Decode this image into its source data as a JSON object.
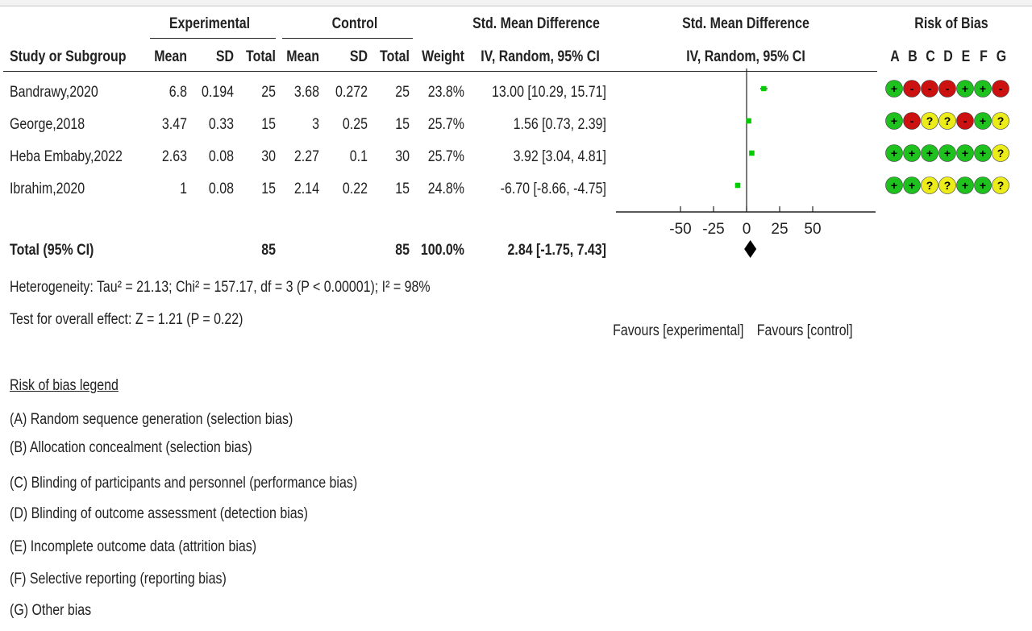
{
  "headers": {
    "experimental": "Experimental",
    "control": "Control",
    "smd_table": "Std. Mean Difference",
    "smd_plot": "Std. Mean Difference",
    "risk_of_bias": "Risk of Bias",
    "study": "Study or Subgroup",
    "mean": "Mean",
    "sd": "SD",
    "total": "Total",
    "weight": "Weight",
    "method_table": "IV, Random, 95% CI",
    "method_plot": "IV, Random, 95% CI",
    "bias_letters": [
      "A",
      "B",
      "C",
      "D",
      "E",
      "F",
      "G"
    ]
  },
  "studies": [
    {
      "name": "Bandrawy,2020",
      "exp_mean": "6.8",
      "exp_sd": "0.194",
      "exp_total": "25",
      "ctl_mean": "3.68",
      "ctl_sd": "0.272",
      "ctl_total": "25",
      "weight": "23.8%",
      "ci_text": "13.00 [10.29, 15.71]"
    },
    {
      "name": "George,2018",
      "exp_mean": "3.47",
      "exp_sd": "0.33",
      "exp_total": "15",
      "ctl_mean": "3",
      "ctl_sd": "0.25",
      "ctl_total": "15",
      "weight": "25.7%",
      "ci_text": "1.56 [0.73, 2.39]"
    },
    {
      "name": "Heba Embaby,2022",
      "exp_mean": "2.63",
      "exp_sd": "0.08",
      "exp_total": "30",
      "ctl_mean": "2.27",
      "ctl_sd": "0.1",
      "ctl_total": "30",
      "weight": "25.7%",
      "ci_text": "3.92 [3.04, 4.81]"
    },
    {
      "name": "Ibrahim,2020",
      "exp_mean": "1",
      "exp_sd": "0.08",
      "exp_total": "15",
      "ctl_mean": "2.14",
      "ctl_sd": "0.22",
      "ctl_total": "15",
      "weight": "24.8%",
      "ci_text": "-6.70 [-8.66, -4.75]"
    }
  ],
  "total": {
    "name": "Total (95% CI)",
    "exp_total": "85",
    "ctl_total": "85",
    "weight": "100.0%",
    "ci_text": "2.84 [-1.75, 7.43]"
  },
  "heterogeneity": "Heterogeneity: Tau² = 21.13; Chi² = 157.17, df = 3 (P < 0.00001); I² = 98%",
  "overall_effect": "Test for overall effect: Z = 1.21 (P = 0.22)",
  "favours_left": "Favours [experimental]",
  "favours_right": "Favours [control]",
  "chart_data": {
    "type": "forest",
    "x_ticks": [
      "-50",
      "-25",
      "0",
      "25",
      "50"
    ],
    "xlim": [
      -50,
      50
    ],
    "studies": [
      {
        "label": "Bandrawy,2020",
        "estimate": 13.0,
        "ci": [
          10.29,
          15.71
        ],
        "weight": 23.8
      },
      {
        "label": "George,2018",
        "estimate": 1.56,
        "ci": [
          0.73,
          2.39
        ],
        "weight": 25.7
      },
      {
        "label": "Heba Embaby,2022",
        "estimate": 3.92,
        "ci": [
          3.04,
          4.81
        ],
        "weight": 25.7
      },
      {
        "label": "Ibrahim,2020",
        "estimate": -6.7,
        "ci": [
          -8.66,
          -4.75
        ],
        "weight": 24.8
      }
    ],
    "pooled": {
      "estimate": 2.84,
      "ci": [
        -1.75,
        7.43
      ]
    },
    "marker_color": "#00cc00"
  },
  "risk_of_bias": {
    "colors": {
      "low": "#1fc11f",
      "high": "#cc1111",
      "unclear": "#ecec1a"
    },
    "symbols": {
      "low": "+",
      "high": "-",
      "unclear": "?"
    },
    "rows": [
      [
        "low",
        "high",
        "high",
        "high",
        "low",
        "low",
        "high"
      ],
      [
        "low",
        "high",
        "unclear",
        "unclear",
        "high",
        "low",
        "unclear"
      ],
      [
        "low",
        "low",
        "low",
        "low",
        "low",
        "low",
        "unclear"
      ],
      [
        "low",
        "low",
        "unclear",
        "unclear",
        "low",
        "low",
        "unclear"
      ]
    ]
  },
  "legend": {
    "title": "Risk of bias legend",
    "items": [
      {
        "key": "(A)",
        "text": "Random sequence generation (selection bias)"
      },
      {
        "key": "(B)",
        "text": "Allocation concealment (selection bias)"
      },
      {
        "key": "(C)",
        "text": "Blinding of participants and personnel (performance bias)"
      },
      {
        "key": "(D)",
        "text": "Blinding of outcome assessment (detection bias)"
      },
      {
        "key": "(E)",
        "text": "Incomplete outcome data (attrition bias)"
      },
      {
        "key": "(F)",
        "text": "Selective reporting (reporting bias)"
      },
      {
        "key": "(G)",
        "text": "Other bias"
      }
    ]
  }
}
